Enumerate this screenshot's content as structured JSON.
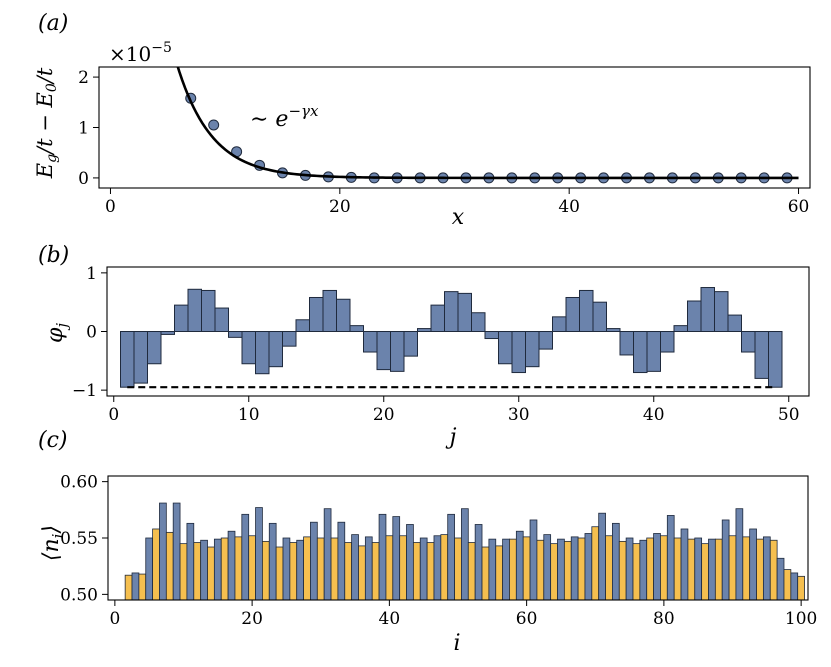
{
  "chart_data": [
    {
      "panel_label": "(a)",
      "type": "scatter",
      "ylabel": "E_g/t − E_0/t",
      "xlabel": "x",
      "y_multiplier": "×10⁻⁵",
      "annotation": "∼ e^{−γx}",
      "xlim": [
        -1,
        61
      ],
      "ylim": [
        -0.2,
        2.2
      ],
      "xticks": [
        0,
        20,
        40,
        60
      ],
      "yticks": [
        0,
        1,
        2
      ],
      "colors": {
        "marker": "#6b83ac",
        "fit": "#000000"
      },
      "points": {
        "x": [
          7,
          9,
          11,
          13,
          15,
          17,
          19,
          21,
          23,
          25,
          27,
          29,
          31,
          33,
          35,
          37,
          39,
          41,
          43,
          45,
          47,
          49,
          51,
          53,
          55,
          57,
          59
        ],
        "y": [
          1.58,
          1.05,
          0.52,
          0.25,
          0.1,
          0.05,
          0.02,
          0.01,
          0,
          0,
          0,
          0,
          0,
          0,
          0,
          0,
          0,
          0,
          0,
          0,
          0,
          0,
          0,
          0,
          0,
          0,
          0
        ]
      },
      "fit": {
        "A": 6.7,
        "gamma": 0.33
      }
    },
    {
      "panel_label": "(b)",
      "type": "bar",
      "ylabel": "φ_j",
      "xlabel": "j",
      "xlim": [
        -0.5,
        51.5
      ],
      "ylim": [
        -1.1,
        1.1
      ],
      "xticks": [
        0,
        10,
        20,
        30,
        40,
        50
      ],
      "yticks": [
        -1,
        0,
        1
      ],
      "colors": {
        "bar": "#6b83ac"
      },
      "dashed_line": {
        "y": -0.95,
        "x": [
          1,
          49
        ]
      },
      "x": [
        1,
        2,
        3,
        4,
        5,
        6,
        7,
        8,
        9,
        10,
        11,
        12,
        13,
        14,
        15,
        16,
        17,
        18,
        19,
        20,
        21,
        22,
        23,
        24,
        25,
        26,
        27,
        28,
        29,
        30,
        31,
        32,
        33,
        34,
        35,
        36,
        37,
        38,
        39,
        40,
        41,
        42,
        43,
        44,
        45,
        46,
        47,
        48,
        49
      ],
      "values": [
        -0.95,
        -0.88,
        -0.55,
        -0.05,
        0.45,
        0.72,
        0.7,
        0.4,
        -0.1,
        -0.55,
        -0.72,
        -0.6,
        -0.25,
        0.2,
        0.58,
        0.7,
        0.55,
        0.1,
        -0.35,
        -0.65,
        -0.68,
        -0.42,
        0.05,
        0.45,
        0.68,
        0.65,
        0.32,
        -0.12,
        -0.55,
        -0.7,
        -0.6,
        -0.3,
        0.25,
        0.58,
        0.7,
        0.5,
        0.05,
        -0.4,
        -0.7,
        -0.68,
        -0.35,
        0.1,
        0.52,
        0.75,
        0.68,
        0.28,
        -0.35,
        -0.8,
        -0.95
      ]
    },
    {
      "panel_label": "(c)",
      "type": "bar",
      "ylabel": "⟨n_i⟩",
      "xlabel": "i",
      "xlim": [
        -1,
        101
      ],
      "ylim": [
        0.495,
        0.605
      ],
      "xticks": [
        0,
        20,
        40,
        60,
        80,
        100
      ],
      "yticks": [
        0.5,
        0.55,
        0.6
      ],
      "colors": {
        "even": "#6b83ac",
        "odd": "#f5bf4f"
      },
      "x_start": 2,
      "values": [
        0.517,
        0.519,
        0.518,
        0.55,
        0.558,
        0.581,
        0.555,
        0.581,
        0.545,
        0.563,
        0.546,
        0.548,
        0.542,
        0.549,
        0.55,
        0.556,
        0.551,
        0.571,
        0.552,
        0.577,
        0.547,
        0.563,
        0.542,
        0.55,
        0.546,
        0.548,
        0.551,
        0.564,
        0.55,
        0.576,
        0.55,
        0.564,
        0.546,
        0.553,
        0.543,
        0.551,
        0.546,
        0.571,
        0.552,
        0.569,
        0.552,
        0.562,
        0.546,
        0.55,
        0.546,
        0.552,
        0.553,
        0.571,
        0.55,
        0.576,
        0.546,
        0.562,
        0.542,
        0.549,
        0.543,
        0.549,
        0.549,
        0.556,
        0.551,
        0.566,
        0.548,
        0.553,
        0.545,
        0.549,
        0.547,
        0.551,
        0.55,
        0.554,
        0.56,
        0.572,
        0.552,
        0.563,
        0.547,
        0.55,
        0.545,
        0.548,
        0.55,
        0.554,
        0.552,
        0.57,
        0.55,
        0.558,
        0.549,
        0.55,
        0.545,
        0.549,
        0.549,
        0.566,
        0.552,
        0.576,
        0.551,
        0.558,
        0.549,
        0.551,
        0.548,
        0.532,
        0.522,
        0.519,
        0.516
      ]
    }
  ]
}
